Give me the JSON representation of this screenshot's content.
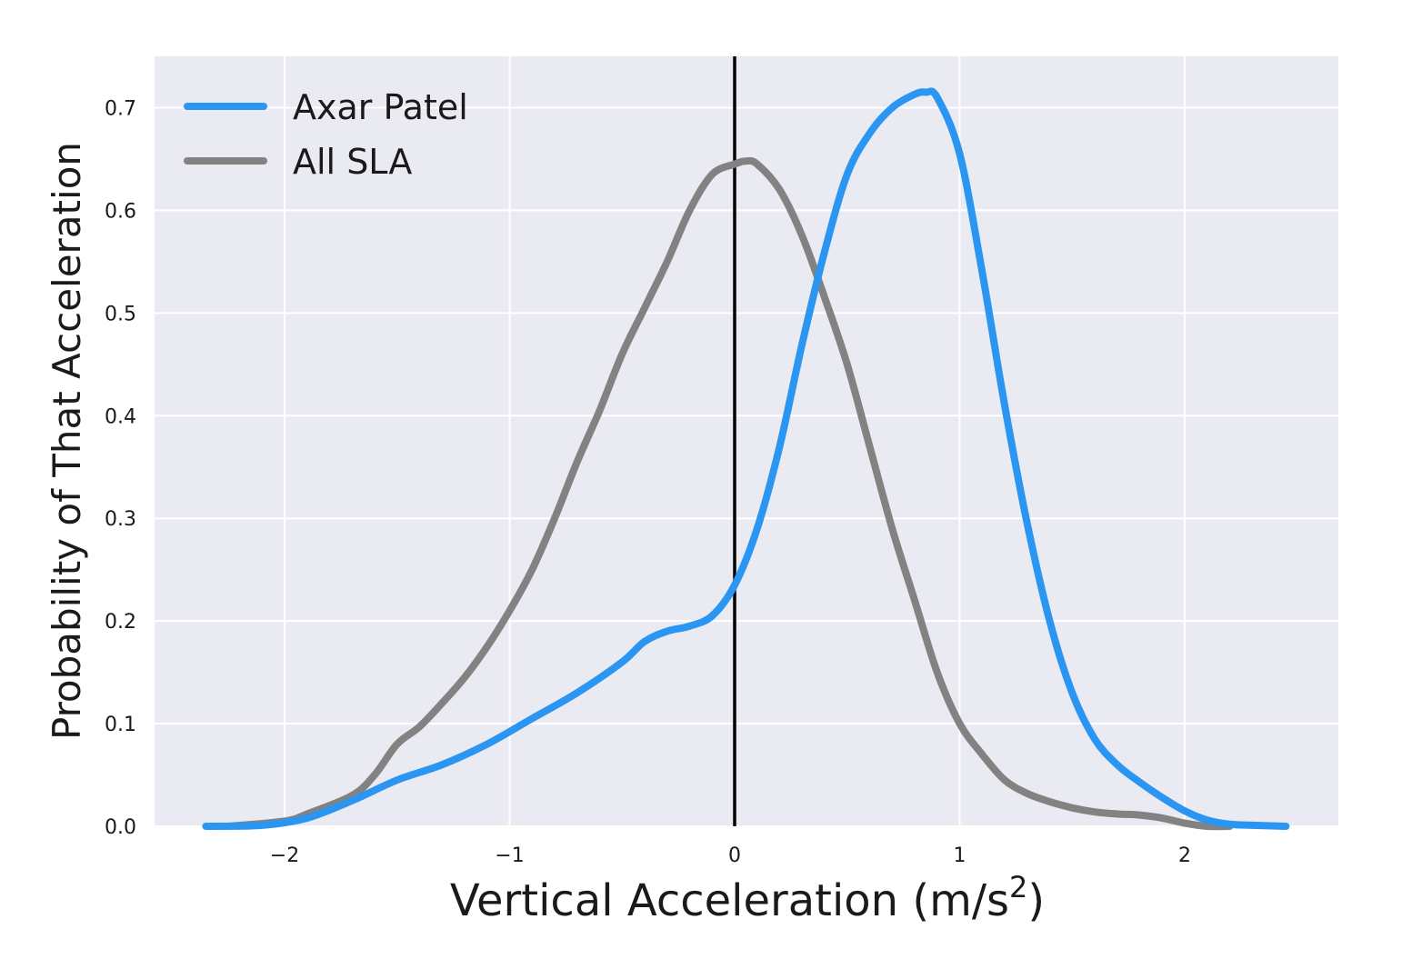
{
  "chart_data": {
    "type": "line",
    "xlabel": "Vertical Acceleration (m/s",
    "xlabel_superscript": "2",
    "xlabel_suffix": ")",
    "ylabel": "Probability of That Acceleration",
    "xlim": [
      -2.5,
      2.7
    ],
    "ylim": [
      0.0,
      0.75
    ],
    "x_ticks": [
      -2,
      -1,
      0,
      1,
      2
    ],
    "x_tick_labels": [
      "−2",
      "−1",
      "0",
      "1",
      "2"
    ],
    "y_ticks": [
      0.0,
      0.1,
      0.2,
      0.3,
      0.4,
      0.5,
      0.6,
      0.7
    ],
    "y_tick_labels": [
      "0.0",
      "0.1",
      "0.2",
      "0.3",
      "0.4",
      "0.5",
      "0.6",
      "0.7"
    ],
    "grid": true,
    "legend_position": "top-left",
    "background_color": "#e9eaf2",
    "grid_color": "#ffffff",
    "reference_line": {
      "x": 0,
      "color": "#000000"
    },
    "series": [
      {
        "name": "Axar Patel",
        "color": "#2b95f2",
        "x": [
          -2.35,
          -2.1,
          -1.9,
          -1.7,
          -1.5,
          -1.3,
          -1.1,
          -0.9,
          -0.7,
          -0.5,
          -0.4,
          -0.3,
          -0.2,
          -0.1,
          0.0,
          0.1,
          0.2,
          0.3,
          0.4,
          0.5,
          0.6,
          0.7,
          0.8,
          0.85,
          0.9,
          1.0,
          1.1,
          1.2,
          1.3,
          1.4,
          1.5,
          1.6,
          1.7,
          1.8,
          1.9,
          2.0,
          2.1,
          2.2,
          2.3,
          2.45
        ],
        "y": [
          0.0,
          0.001,
          0.008,
          0.025,
          0.045,
          0.06,
          0.08,
          0.105,
          0.13,
          0.16,
          0.18,
          0.19,
          0.195,
          0.205,
          0.235,
          0.29,
          0.37,
          0.47,
          0.56,
          0.635,
          0.675,
          0.7,
          0.713,
          0.715,
          0.71,
          0.655,
          0.54,
          0.41,
          0.295,
          0.2,
          0.13,
          0.085,
          0.06,
          0.043,
          0.028,
          0.015,
          0.006,
          0.002,
          0.001,
          0.0
        ]
      },
      {
        "name": "All SLA",
        "color": "#828282",
        "x": [
          -2.25,
          -2.0,
          -1.9,
          -1.7,
          -1.6,
          -1.5,
          -1.4,
          -1.3,
          -1.2,
          -1.1,
          -1.0,
          -0.9,
          -0.8,
          -0.7,
          -0.6,
          -0.5,
          -0.4,
          -0.3,
          -0.2,
          -0.1,
          0.0,
          0.05,
          0.1,
          0.2,
          0.3,
          0.4,
          0.5,
          0.6,
          0.7,
          0.8,
          0.9,
          1.0,
          1.1,
          1.2,
          1.3,
          1.4,
          1.5,
          1.6,
          1.7,
          1.8,
          1.9,
          2.0,
          2.1,
          2.2
        ],
        "y": [
          0.0,
          0.005,
          0.012,
          0.03,
          0.05,
          0.08,
          0.097,
          0.12,
          0.145,
          0.175,
          0.21,
          0.25,
          0.3,
          0.355,
          0.405,
          0.46,
          0.505,
          0.55,
          0.6,
          0.635,
          0.645,
          0.648,
          0.645,
          0.62,
          0.575,
          0.515,
          0.45,
          0.37,
          0.29,
          0.22,
          0.15,
          0.1,
          0.07,
          0.045,
          0.032,
          0.024,
          0.018,
          0.014,
          0.012,
          0.011,
          0.008,
          0.003,
          0.0,
          0.0
        ]
      }
    ]
  }
}
